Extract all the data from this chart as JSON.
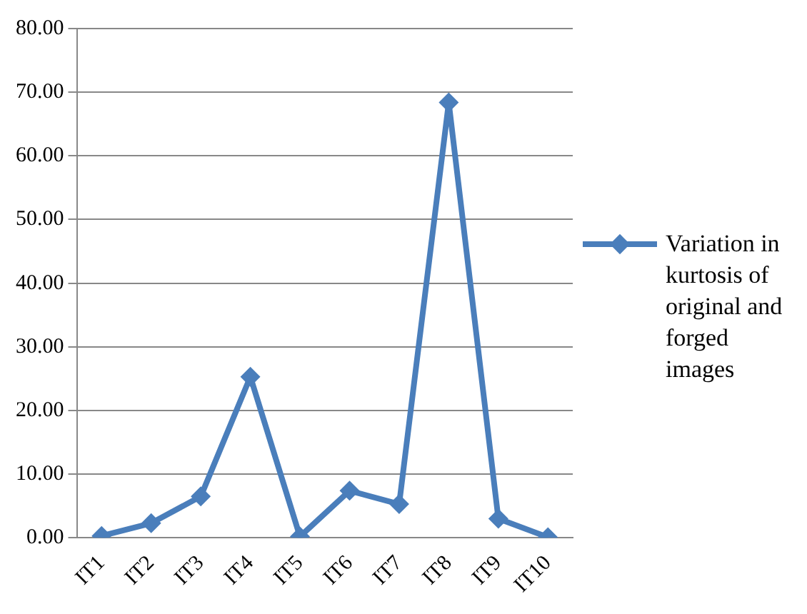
{
  "chart_data": {
    "type": "line",
    "categories": [
      "IT1",
      "IT2",
      "IT3",
      "IT4",
      "IT5",
      "IT6",
      "IT7",
      "IT8",
      "IT9",
      "IT10"
    ],
    "series": [
      {
        "name": "Variation in kurtosis of original and forged images",
        "color": "#4a7ebb",
        "values": [
          0.3,
          2.3,
          6.5,
          25.3,
          0.2,
          7.4,
          5.3,
          68.4,
          3.0,
          0.1
        ]
      }
    ],
    "ylim": [
      0,
      80
    ],
    "yticks": [
      {
        "value": 0,
        "label": "0.00"
      },
      {
        "value": 10,
        "label": "10.00"
      },
      {
        "value": 20,
        "label": "20.00"
      },
      {
        "value": 30,
        "label": "30.00"
      },
      {
        "value": 40,
        "label": "40.00"
      },
      {
        "value": 50,
        "label": "50.00"
      },
      {
        "value": 60,
        "label": "60.00"
      },
      {
        "value": 70,
        "label": "70.00"
      },
      {
        "value": 80,
        "label": "80.00"
      }
    ],
    "grid": "y",
    "legend": "right",
    "marker": "diamond",
    "line_style": "solid"
  }
}
